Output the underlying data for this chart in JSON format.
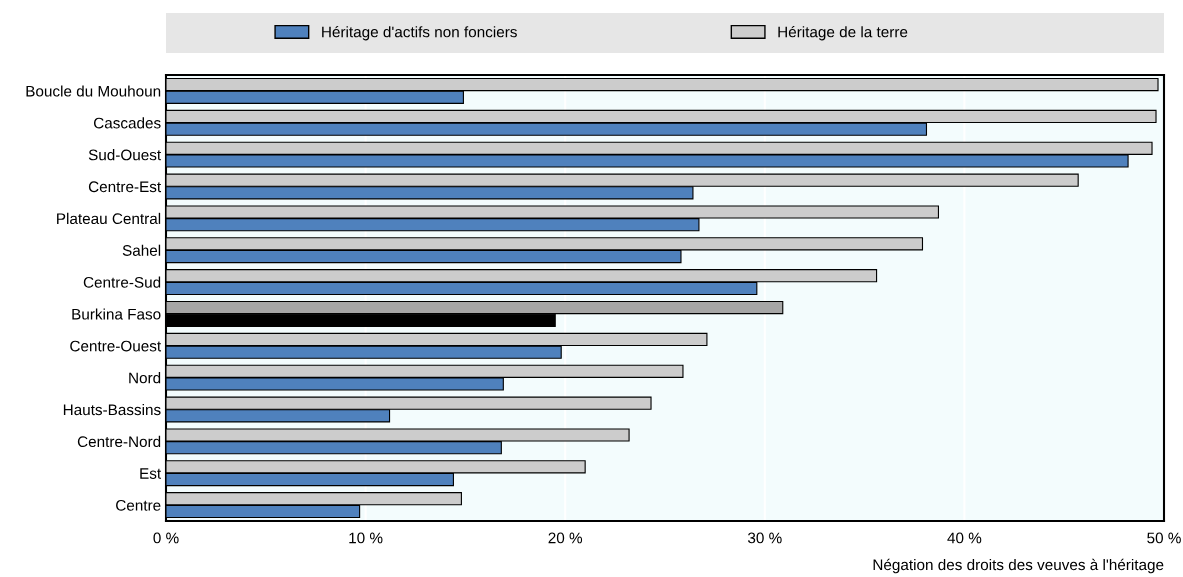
{
  "chart_data": {
    "type": "bar",
    "orientation": "horizontal",
    "categories": [
      "Boucle du Mouhoun",
      "Cascades",
      "Sud-Ouest",
      "Centre-Est",
      "Plateau Central",
      "Sahel",
      "Centre-Sud",
      "Burkina Faso",
      "Centre-Ouest",
      "Nord",
      "Hauts-Bassins",
      "Centre-Nord",
      "Est",
      "Centre"
    ],
    "series": [
      {
        "name": "Héritage d'actifs non fonciers",
        "color": "#4f81bd",
        "colors": [
          "#4f81bd",
          "#4f81bd",
          "#4f81bd",
          "#4f81bd",
          "#4f81bd",
          "#4f81bd",
          "#4f81bd",
          "#000000",
          "#4f81bd",
          "#4f81bd",
          "#4f81bd",
          "#4f81bd",
          "#4f81bd",
          "#4f81bd"
        ],
        "values": [
          14.9,
          38.1,
          48.2,
          26.4,
          26.7,
          25.8,
          29.6,
          19.5,
          19.8,
          16.9,
          11.2,
          16.8,
          14.4,
          9.7
        ]
      },
      {
        "name": "Héritage de la terre",
        "color": "#cccccc",
        "colors": [
          "#cccccc",
          "#cccccc",
          "#cccccc",
          "#cccccc",
          "#cccccc",
          "#cccccc",
          "#cccccc",
          "#a6a6a6",
          "#cccccc",
          "#cccccc",
          "#cccccc",
          "#cccccc",
          "#cccccc",
          "#cccccc"
        ],
        "values": [
          49.7,
          49.6,
          49.4,
          45.7,
          38.7,
          37.9,
          35.6,
          30.9,
          27.1,
          25.9,
          24.3,
          23.2,
          21.0,
          14.8
        ]
      }
    ],
    "xlim": [
      0,
      50
    ],
    "xticks": [
      {
        "value": 0,
        "label": "0 %"
      },
      {
        "value": 10,
        "label": "10 %"
      },
      {
        "value": 20,
        "label": "20 %"
      },
      {
        "value": 30,
        "label": "30 %"
      },
      {
        "value": 40,
        "label": "40 %"
      },
      {
        "value": 50,
        "label": "50 %"
      }
    ],
    "xlabel": "Négation des droits des veuves à l'héritage",
    "grid": "x",
    "legend": "top"
  }
}
